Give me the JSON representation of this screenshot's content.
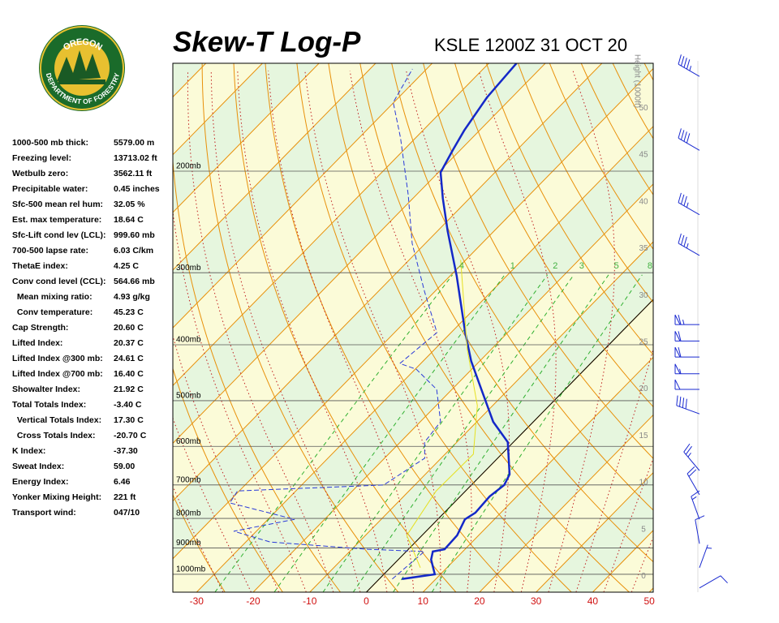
{
  "logo": {
    "top": "OREGON",
    "bottom": "DEPARTMENT OF FORESTRY"
  },
  "indices": [
    {
      "label": "1000-500 mb thick:",
      "value": "5579.00 m"
    },
    {
      "label": "Freezing level:",
      "value": "13713.02 ft"
    },
    {
      "label": "Wetbulb zero:",
      "value": "3562.11 ft"
    },
    {
      "label": "Precipitable water:",
      "value": "0.45 inches"
    },
    {
      "label": "Sfc-500 mean rel hum:",
      "value": "32.05 %"
    },
    {
      "label": "Est. max temperature:",
      "value": "18.64 C"
    },
    {
      "label": "Sfc-Lift cond lev (LCL):",
      "value": "999.60 mb"
    },
    {
      "label": "700-500 lapse rate:",
      "value": "6.03 C/km"
    },
    {
      "label": "ThetaE index:",
      "value": "4.25 C"
    },
    {
      "label": "Conv cond level (CCL):",
      "value": "564.66 mb"
    },
    {
      "label": "  Mean mixing ratio:",
      "value": "4.93 g/kg"
    },
    {
      "label": "  Conv temperature:",
      "value": "45.23 C"
    },
    {
      "label": "Cap Strength:",
      "value": "20.60 C"
    },
    {
      "label": "Lifted Index:",
      "value": "20.37 C"
    },
    {
      "label": "Lifted Index @300 mb:",
      "value": "24.61 C"
    },
    {
      "label": "Lifted Index @700 mb:",
      "value": "16.40 C"
    },
    {
      "label": "Showalter Index:",
      "value": "21.92 C"
    },
    {
      "label": "Total Totals Index:",
      "value": "-3.40 C"
    },
    {
      "label": "  Vertical Totals Index:",
      "value": "17.30 C"
    },
    {
      "label": "  Cross Totals Index:",
      "value": "-20.70 C"
    },
    {
      "label": "K Index:",
      "value": "-37.30"
    },
    {
      "label": "Sweat Index:",
      "value": "59.00"
    },
    {
      "label": "Energy Index:",
      "value": "6.46"
    },
    {
      "label": "Yonker Mixing Height:",
      "value": "221 ft"
    },
    {
      "label": "Transport wind:",
      "value": "047/10"
    }
  ],
  "chart_data": {
    "type": "skew-t",
    "title": "Skew-T Log-P",
    "subtitle": "KSLE 1200Z 31 OCT 20",
    "xlim": [
      -34.2,
      50.7
    ],
    "xticks": [
      -30,
      -20,
      -10,
      0,
      10,
      20,
      30,
      40,
      50
    ],
    "log_y": true,
    "ylim": [
      1074,
      130
    ],
    "yticks": [
      {
        "value": 200,
        "label": "200mb"
      },
      {
        "value": 300,
        "label": "300mb"
      },
      {
        "value": 400,
        "label": "400mb"
      },
      {
        "value": 500,
        "label": "500mb"
      },
      {
        "value": 600,
        "label": "600mb"
      },
      {
        "value": 700,
        "label": "700mb"
      },
      {
        "value": 800,
        "label": "800mb"
      },
      {
        "value": 900,
        "label": "900mb"
      },
      {
        "value": 1000,
        "label": "1000mb"
      }
    ],
    "y2label": "Height (1000ft)",
    "y2lim": [
      -1.7,
      54.8
    ],
    "y2ticks": [
      0,
      5,
      10,
      15,
      20,
      25,
      30,
      35,
      40,
      45,
      50
    ],
    "mixing_ratio": [
      {
        "value": 0.4,
        "label": ".4"
      },
      1,
      2,
      3,
      5,
      8
    ],
    "series": [
      {
        "color": "#1428c8",
        "style": "solid",
        "pressure": [
          1019,
          1000,
          943,
          913,
          905,
          856,
          803,
          782,
          733,
          700,
          671,
          590,
          544,
          478,
          427,
          381,
          304,
          254,
          223,
          201,
          184,
          170,
          149,
          130
        ],
        "values": [
          4.0,
          9.0,
          5.8,
          4.7,
          6.4,
          6.2,
          4.8,
          5.5,
          5.2,
          5.8,
          4.9,
          -1.0,
          -7.1,
          -14.8,
          -21.5,
          -27.5,
          -38.8,
          -48.2,
          -54.7,
          -59.6,
          -61.3,
          -62.7,
          -64.4,
          -65.1
        ]
      },
      {
        "color": "#2a3ad8",
        "style": "dashed",
        "pressure": [
          1019,
          913,
          905,
          879,
          842,
          803,
          752,
          717,
          700,
          629,
          590,
          544,
          478,
          441,
          431,
          381,
          324,
          267,
          220,
          175,
          152,
          133
        ],
        "values": [
          2.3,
          3.2,
          -7.2,
          -25.7,
          -34.0,
          -25.3,
          -39.6,
          -40.3,
          -15.5,
          -12.9,
          -15.7,
          -16.4,
          -22.7,
          -29.8,
          -33.7,
          -32.5,
          -41.7,
          -52.3,
          -61.4,
          -72.7,
          -80.1,
          -82.5
        ]
      },
      {
        "color": "#e6e020",
        "style": "solid",
        "pressure": [
          974,
          856,
          717,
          619,
          510,
          406,
          285
        ],
        "values": [
          5.3,
          -2.7,
          -5.2,
          -5.0,
          -12.7,
          -24.4,
          -40.9
        ]
      }
    ],
    "winds": {
      "pressure": [
        137,
        184,
        238,
        280,
        369,
        394,
        420,
        449,
        478,
        527,
        661,
        728,
        803,
        885,
        974,
        1056
      ],
      "direction": [
        300,
        300,
        300,
        300,
        270,
        270,
        270,
        270,
        270,
        290,
        320,
        330,
        340,
        350,
        20,
        60
      ],
      "speed": [
        45,
        40,
        35,
        35,
        65,
        60,
        60,
        55,
        50,
        40,
        25,
        20,
        15,
        10,
        5,
        10
      ]
    }
  }
}
